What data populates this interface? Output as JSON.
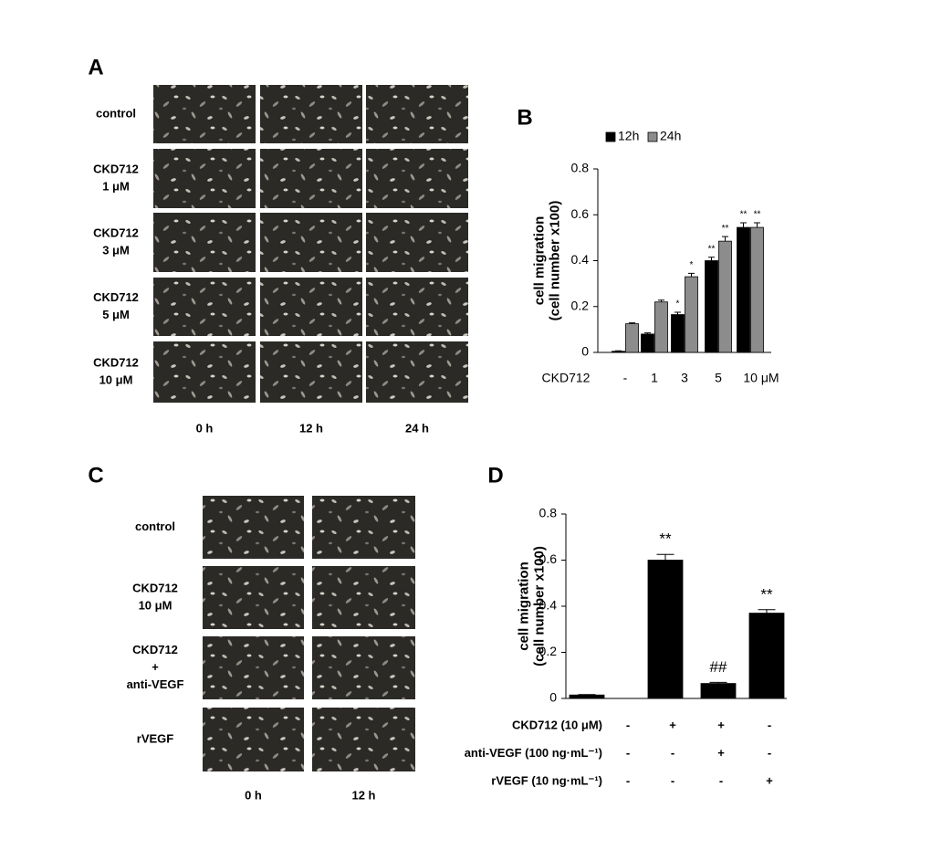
{
  "panels": {
    "a": {
      "label": "A",
      "rows": [
        [
          "control"
        ],
        [
          "CKD712",
          "1 μM"
        ],
        [
          "CKD712",
          "3 μM"
        ],
        [
          "CKD712",
          "5 μM"
        ],
        [
          "CKD712",
          "10 μM"
        ]
      ],
      "columns": [
        "0 h",
        "12 h",
        "24 h"
      ]
    },
    "c": {
      "label": "C",
      "rows": [
        [
          "control"
        ],
        [
          "CKD712",
          "10 μM"
        ],
        [
          "CKD712",
          "+",
          "anti-VEGF"
        ],
        [
          "rVEGF"
        ]
      ],
      "columns": [
        "0 h",
        "12 h"
      ]
    }
  },
  "chart_data": [
    {
      "type": "bar",
      "panel_label": "B",
      "ylabel": [
        "cell migration",
        "(cell number x100)"
      ],
      "xlabel": "CKD712",
      "categories": [
        "-",
        "1",
        "3",
        "5",
        "10 μM"
      ],
      "ylim": [
        0,
        0.8
      ],
      "yticks": [
        0,
        0.2,
        0.4,
        0.6,
        0.8
      ],
      "series": [
        {
          "name": "12h",
          "color": "#000000",
          "values": [
            0.005,
            0.08,
            0.165,
            0.4,
            0.545
          ],
          "errors": [
            0.002,
            0.005,
            0.01,
            0.015,
            0.02
          ],
          "annotations": [
            null,
            null,
            "*",
            "**",
            "**"
          ]
        },
        {
          "name": "24h",
          "color": "#8c8c8c",
          "values": [
            0.125,
            0.22,
            0.33,
            0.485,
            0.545
          ],
          "errors": [
            0.004,
            0.008,
            0.015,
            0.02,
            0.02
          ],
          "annotations": [
            null,
            null,
            "*",
            "**",
            "**"
          ]
        }
      ]
    },
    {
      "type": "bar",
      "panel_label": "D",
      "ylabel": [
        "cell migration",
        "(cell number x100)"
      ],
      "ylim": [
        0,
        0.8
      ],
      "yticks": [
        0,
        0.2,
        0.4,
        0.6,
        0.8
      ],
      "color": "#000000",
      "values": [
        0.015,
        0.6,
        0.065,
        0.37
      ],
      "errors": [
        0.002,
        0.025,
        0.005,
        0.015
      ],
      "annotations": [
        null,
        "**",
        "##",
        "**"
      ],
      "conditions": [
        {
          "label": "CKD712 (10 μM)",
          "signs": [
            "-",
            "+",
            "+",
            "-"
          ]
        },
        {
          "label": "anti-VEGF (100 ng·mL⁻¹)",
          "signs": [
            "-",
            "-",
            "+",
            "-"
          ]
        },
        {
          "label": "rVEGF (10 ng·mL⁻¹)",
          "signs": [
            "-",
            "-",
            "-",
            "+"
          ]
        }
      ]
    }
  ]
}
